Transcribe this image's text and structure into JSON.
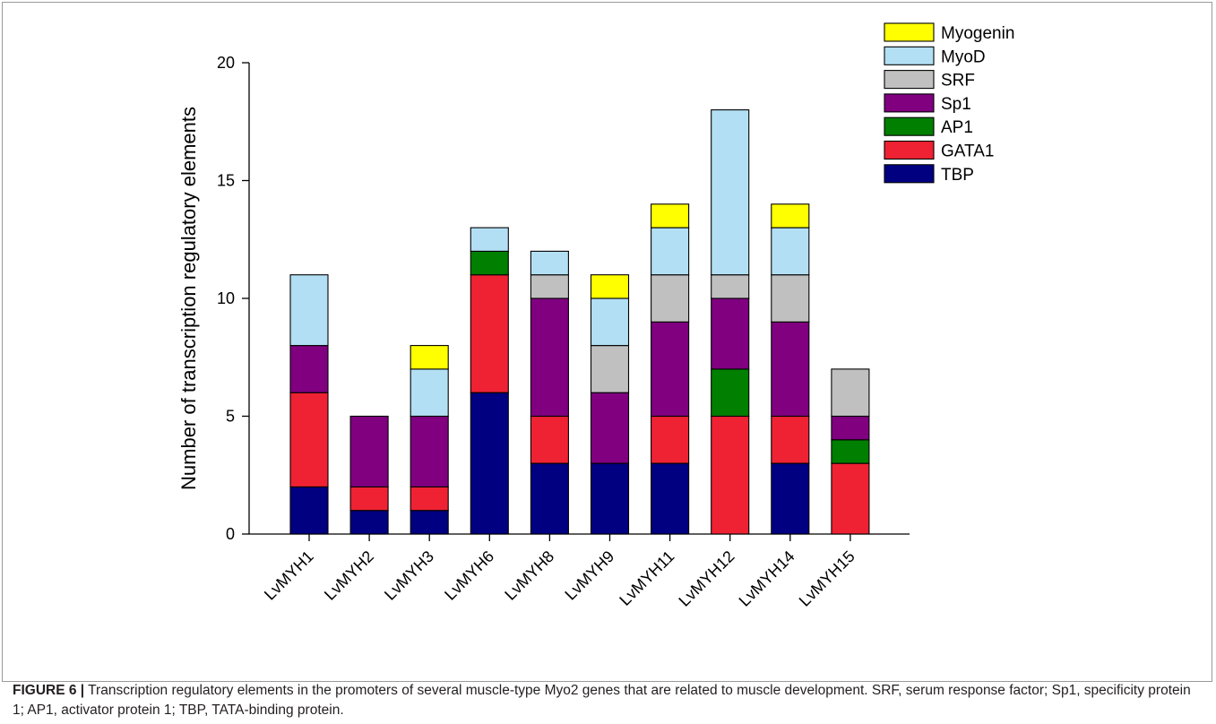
{
  "chart_data": {
    "type": "bar",
    "stacked": true,
    "categories": [
      "LvMYH1",
      "LvMYH2",
      "LvMYH3",
      "LvMYH6",
      "LvMYH8",
      "LvMYH9",
      "LvMYH11",
      "LvMYH12",
      "LvMYH14",
      "LvMYH15"
    ],
    "series": [
      {
        "name": "TBP",
        "color": "#000080",
        "values": [
          2,
          1,
          1,
          6,
          3,
          3,
          3,
          0,
          3,
          0
        ]
      },
      {
        "name": "GATA1",
        "color": "#ee2233",
        "values": [
          4,
          1,
          1,
          5,
          2,
          0,
          2,
          5,
          2,
          3
        ]
      },
      {
        "name": "AP1",
        "color": "#007f00",
        "values": [
          0,
          0,
          0,
          1,
          0,
          0,
          0,
          2,
          0,
          1
        ]
      },
      {
        "name": "Sp1",
        "color": "#800080",
        "values": [
          2,
          3,
          3,
          0,
          5,
          3,
          4,
          3,
          4,
          1
        ]
      },
      {
        "name": "SRF",
        "color": "#c0c0c0",
        "values": [
          0,
          0,
          0,
          0,
          1,
          2,
          2,
          1,
          2,
          2
        ]
      },
      {
        "name": "MyoD",
        "color": "#b3dff4",
        "values": [
          3,
          0,
          2,
          1,
          1,
          2,
          2,
          7,
          2,
          0
        ]
      },
      {
        "name": "Myogenin",
        "color": "#ffff00",
        "values": [
          0,
          0,
          1,
          0,
          0,
          1,
          1,
          0,
          1,
          0
        ]
      }
    ],
    "legend_order": [
      "Myogenin",
      "MyoD",
      "SRF",
      "Sp1",
      "AP1",
      "GATA1",
      "TBP"
    ],
    "legend_position": "top-right",
    "ylabel": "Number of transcription regulatory elements",
    "xlabel": "",
    "ylim": [
      0,
      20
    ],
    "yticks": [
      "0",
      "5",
      "10",
      "15",
      "20"
    ],
    "grid": false,
    "stray_mark": "^"
  },
  "caption": {
    "label": "FIGURE 6 |",
    "text": " Transcription regulatory elements in the promoters of several muscle-type Myo2 genes that are related to muscle development. SRF, serum response factor; Sp1, specificity protein 1; AP1, activator protein 1; TBP, TATA-binding protein."
  }
}
